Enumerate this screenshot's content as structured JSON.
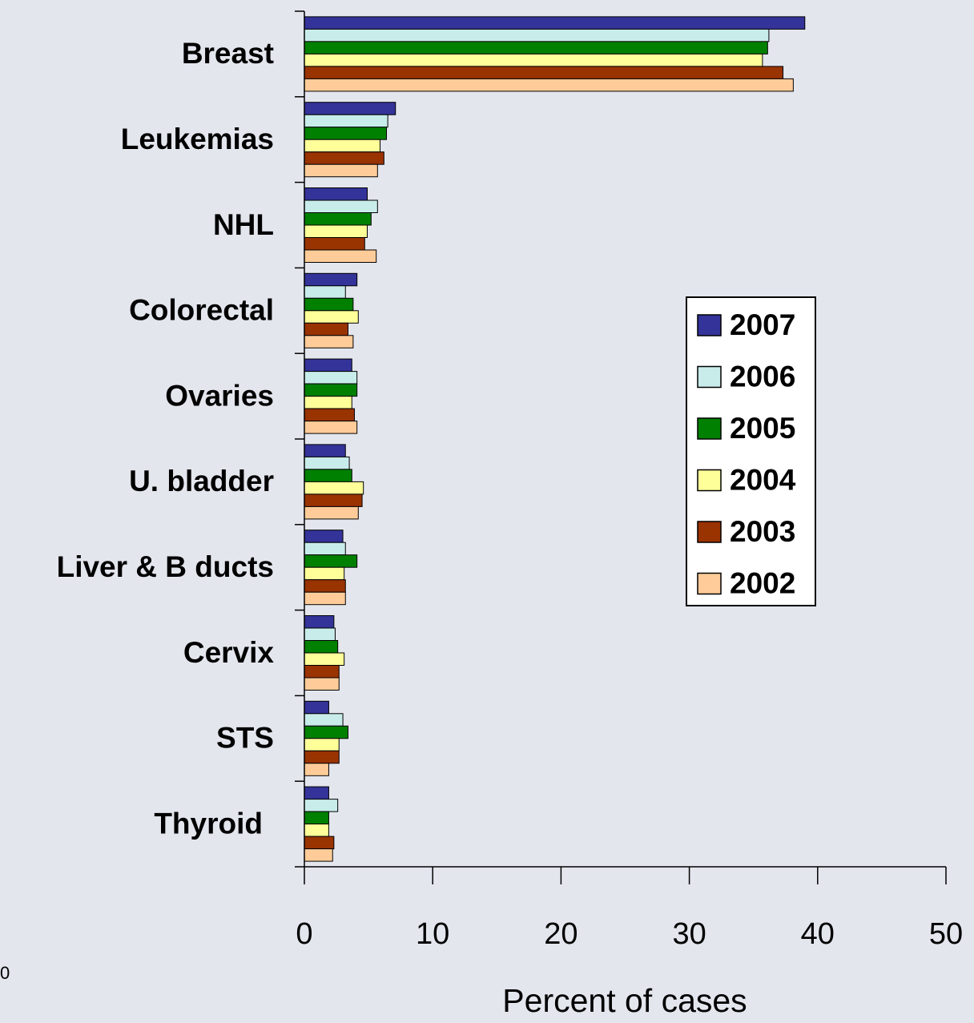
{
  "chart_data": {
    "type": "hbar",
    "categories": [
      "Breast",
      "Leukemias",
      "NHL",
      "Colorectal",
      "Ovaries",
      "U. bladder",
      "Liver & B ducts",
      "Cervix",
      "STS",
      "Thyroid"
    ],
    "series": [
      {
        "name": "2007",
        "color": "#333399",
        "values": [
          39.0,
          7.1,
          4.9,
          4.1,
          3.7,
          3.2,
          3.0,
          2.3,
          1.9,
          1.9
        ]
      },
      {
        "name": "2006",
        "color": "#c8ecea",
        "values": [
          36.2,
          6.5,
          5.7,
          3.2,
          4.1,
          3.5,
          3.2,
          2.4,
          3.0,
          2.6
        ]
      },
      {
        "name": "2005",
        "color": "#008000",
        "values": [
          36.1,
          6.4,
          5.2,
          3.8,
          4.1,
          3.7,
          4.1,
          2.6,
          3.4,
          1.9
        ]
      },
      {
        "name": "2004",
        "color": "#ffff99",
        "values": [
          35.7,
          5.9,
          4.9,
          4.2,
          3.7,
          4.6,
          3.1,
          3.1,
          2.7,
          1.9
        ]
      },
      {
        "name": "2003",
        "color": "#993300",
        "values": [
          37.3,
          6.2,
          4.7,
          3.4,
          3.9,
          4.5,
          3.2,
          2.7,
          2.7,
          2.3
        ]
      },
      {
        "name": "2002",
        "color": "#ffcc99",
        "values": [
          38.1,
          5.7,
          5.6,
          3.8,
          4.1,
          4.2,
          3.2,
          2.7,
          1.9,
          2.2
        ]
      }
    ],
    "x_label": "Percent of cases",
    "xlim": [
      0,
      50
    ],
    "xticks": [
      0,
      10,
      20,
      30,
      40,
      50
    ]
  },
  "slide_number": "0"
}
